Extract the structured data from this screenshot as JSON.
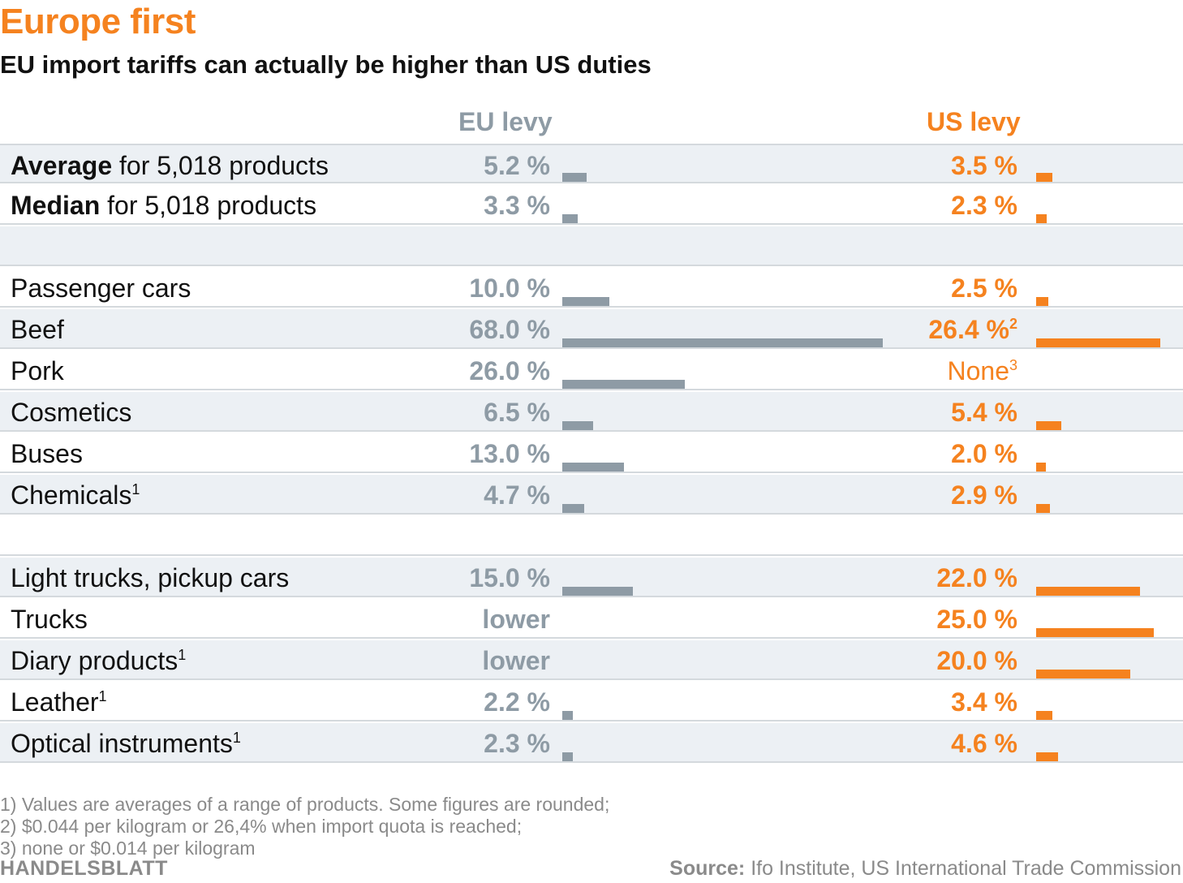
{
  "title": "Europe first",
  "subtitle": "EU import tariffs can actually be higher than US duties",
  "chart_data": {
    "type": "bar",
    "title": "Europe first",
    "subtitle": "EU import tariffs can actually be higher than US duties",
    "unit": "%",
    "series": [
      {
        "name": "EU levy",
        "color": "#8e9ba5"
      },
      {
        "name": "US levy",
        "color": "#f5821f"
      }
    ],
    "rows": [
      {
        "bold": "Average",
        "rest": " for 5,018 products",
        "sup": "",
        "eu": 5.2,
        "eu_text": "5.2 %",
        "us": 3.5,
        "us_text": "3.5 %",
        "us_sup": "",
        "shade": true,
        "first": true
      },
      {
        "bold": "Median",
        "rest": " for 5,018 products",
        "sup": "",
        "eu": 3.3,
        "eu_text": "3.3 %",
        "us": 2.3,
        "us_text": "2.3 %",
        "us_sup": "",
        "shade": false
      },
      {
        "spacer": true,
        "shade": true
      },
      {
        "bold": "",
        "rest": "Passenger cars",
        "sup": "",
        "eu": 10.0,
        "eu_text": "10.0 %",
        "us": 2.5,
        "us_text": "2.5 %",
        "us_sup": "",
        "shade": false
      },
      {
        "bold": "",
        "rest": "Beef",
        "sup": "",
        "eu": 68.0,
        "eu_text": "68.0 %",
        "us": 26.4,
        "us_text": "26.4 %",
        "us_sup": "2",
        "shade": true
      },
      {
        "bold": "",
        "rest": "Pork",
        "sup": "",
        "eu": 26.0,
        "eu_text": "26.0 %",
        "us": null,
        "us_text": "None",
        "us_sup": "3",
        "us_plain": true,
        "shade": false
      },
      {
        "bold": "",
        "rest": "Cosmetics",
        "sup": "",
        "eu": 6.5,
        "eu_text": "6.5 %",
        "us": 5.4,
        "us_text": "5.4 %",
        "us_sup": "",
        "shade": true
      },
      {
        "bold": "",
        "rest": "Buses",
        "sup": "",
        "eu": 13.0,
        "eu_text": "13.0 %",
        "us": 2.0,
        "us_text": "2.0 %",
        "us_sup": "",
        "shade": false
      },
      {
        "bold": "",
        "rest": "Chemicals",
        "sup": "1",
        "eu": 4.7,
        "eu_text": "4.7 %",
        "us": 2.9,
        "us_text": "2.9 %",
        "us_sup": "",
        "shade": true
      },
      {
        "spacer": true,
        "shade": false
      },
      {
        "bold": "",
        "rest": "Light trucks, pickup cars",
        "sup": "",
        "eu": 15.0,
        "eu_text": "15.0 %",
        "us": 22.0,
        "us_text": "22.0 %",
        "us_sup": "",
        "shade": true
      },
      {
        "bold": "",
        "rest": "Trucks",
        "sup": "",
        "eu": null,
        "eu_text": "lower",
        "us": 25.0,
        "us_text": "25.0 %",
        "us_sup": "",
        "shade": false
      },
      {
        "bold": "",
        "rest": "Diary products",
        "sup": "1",
        "eu": null,
        "eu_text": "lower",
        "us": 20.0,
        "us_text": "20.0 %",
        "us_sup": "",
        "shade": true
      },
      {
        "bold": "",
        "rest": "Leather",
        "sup": "1",
        "eu": 2.2,
        "eu_text": "2.2 %",
        "us": 3.4,
        "us_text": "3.4 %",
        "us_sup": "",
        "shade": false
      },
      {
        "bold": "",
        "rest": "Optical instruments",
        "sup": "1",
        "eu": 2.3,
        "eu_text": "2.3 %",
        "us": 4.6,
        "us_text": "4.6 %",
        "us_sup": "",
        "shade": true
      }
    ]
  },
  "notes": [
    "1) Values are averages of a range of products. Some figures are rounded;",
    "2) $0.044 per kilogram or 26,4% when import quota is reached;",
    "3) none or $0.014 per kilogram"
  ],
  "brand": "HANDELSBLATT",
  "source": {
    "label": "Source:",
    "text": " Ifo Institute, US International Trade Commission"
  }
}
